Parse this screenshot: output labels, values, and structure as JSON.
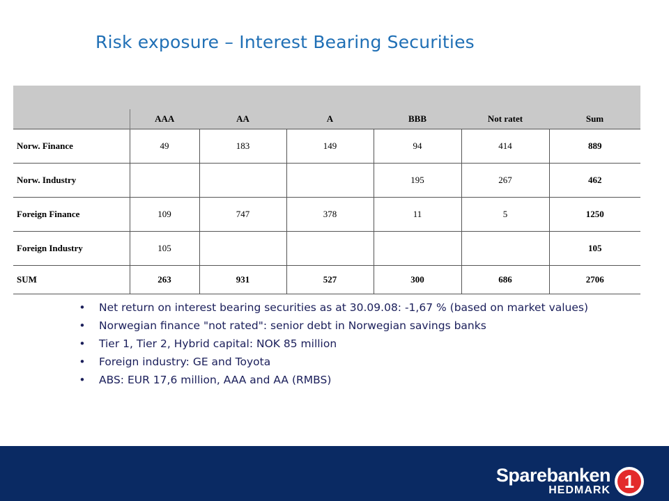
{
  "title": "Risk exposure – Interest Bearing Securities",
  "table": {
    "columns": [
      "AAA",
      "AA",
      "A",
      "BBB",
      "Not ratet",
      "Sum"
    ],
    "rows": [
      {
        "label": "Norw. Finance",
        "cells": [
          "49",
          "183",
          "149",
          "94",
          "414",
          "889"
        ]
      },
      {
        "label": "Norw. Industry",
        "cells": [
          "",
          "",
          "",
          "195",
          "267",
          "462"
        ]
      },
      {
        "label": "Foreign Finance",
        "cells": [
          "109",
          "747",
          "378",
          "11",
          "5",
          "1250"
        ]
      },
      {
        "label": "Foreign Industry",
        "cells": [
          "105",
          "",
          "",
          "",
          "",
          "105"
        ]
      }
    ],
    "total": {
      "label": "SUM",
      "cells": [
        "263",
        "931",
        "527",
        "300",
        "686",
        "2706"
      ]
    }
  },
  "bullets": [
    "Net return on interest bearing securities as at 30.09.08: -1,67 % (based on market values)",
    "Norwegian finance \"not rated\": senior debt in Norwegian savings banks",
    "Tier 1, Tier 2, Hybrid capital: NOK 85 million",
    "Foreign industry: GE and Toyota",
    "ABS: EUR 17,6 million, AAA and AA (RMBS)"
  ],
  "bullet_glyph": "•",
  "logo": {
    "main": "Sparebanken",
    "sub": "HEDMARK",
    "numeral": "1"
  },
  "colors": {
    "title": "#1f6fb5",
    "footer": "#0a2a63",
    "logo_red": "#e32b2b",
    "header_gray": "#c9c9c9"
  }
}
